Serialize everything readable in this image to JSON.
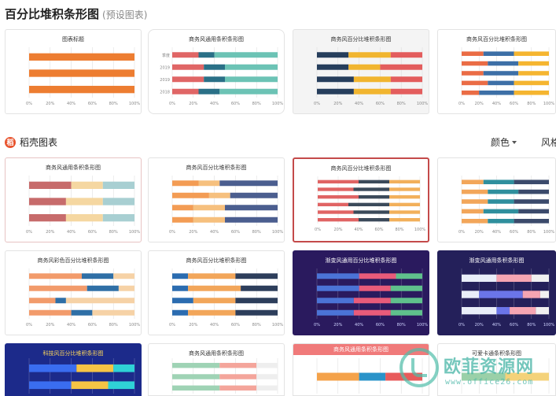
{
  "header": {
    "title": "百分比堆积条形图",
    "subtitle": "(预设图表)"
  },
  "section": {
    "title": "稻壳图表",
    "filter_color": "颜色",
    "filter_style": "风格"
  },
  "watermark": {
    "text": "欧菲资源网",
    "url": "www.office26.com"
  },
  "colors": {
    "accent": "#e8532d",
    "watermark": "#4fb8a6"
  },
  "cards": [
    {
      "id": "preset-1",
      "title": "图表标题",
      "chart_data": {
        "type": "bar",
        "stacked": "percent",
        "categories": [
          "",
          "",
          ""
        ],
        "series": [
          {
            "color": "#ed7d31",
            "values": [
              100,
              100,
              100
            ]
          }
        ],
        "xlim": [
          0,
          100
        ]
      }
    },
    {
      "id": "preset-2",
      "title": "商务风通用条积条形图",
      "chart_data": {
        "type": "bar",
        "stacked": "percent",
        "categories": [
          "季度",
          "2019",
          "2019",
          "2018"
        ],
        "series": [
          {
            "color": "#e06666",
            "values": [
              25,
              30,
              30,
              25
            ]
          },
          {
            "color": "#2a7087",
            "values": [
              15,
              20,
              20,
              20
            ]
          },
          {
            "color": "#6cc3b5",
            "values": [
              60,
              50,
              50,
              55
            ]
          }
        ]
      }
    },
    {
      "id": "preset-3",
      "title": "商务风百分比堆积条形图",
      "chart_data": {
        "type": "bar",
        "stacked": "percent",
        "categories": [
          "",
          "",
          "",
          ""
        ],
        "series": [
          {
            "color": "#263e5c",
            "values": [
              30,
              30,
              35,
              35
            ]
          },
          {
            "color": "#f1b52f",
            "values": [
              40,
              30,
              35,
              35
            ]
          },
          {
            "color": "#e35d5d",
            "values": [
              30,
              40,
              30,
              30
            ]
          }
        ]
      }
    },
    {
      "id": "preset-4",
      "title": "商务风百分比堆积条形图",
      "chart_data": {
        "type": "bar",
        "stacked": "percent",
        "categories": [
          "",
          "",
          "",
          "",
          ""
        ],
        "series": [
          {
            "color": "#ea6c45",
            "values": [
              25,
              30,
              25,
              30,
              20
            ]
          },
          {
            "color": "#3d6fa6",
            "values": [
              35,
              35,
              40,
              30,
              40
            ]
          },
          {
            "color": "#f5b530",
            "values": [
              40,
              35,
              35,
              40,
              40
            ]
          }
        ]
      }
    },
    {
      "id": "doc-1",
      "title": "商务风通用条积条形图",
      "chart_data": {
        "type": "bar",
        "stacked": "percent",
        "categories": [
          "",
          "",
          ""
        ],
        "series": [
          {
            "color": "#c76b6b",
            "values": [
              40,
              35,
              35
            ]
          },
          {
            "color": "#f5d7a1",
            "values": [
              30,
              35,
              35
            ]
          },
          {
            "color": "#a8cfd2",
            "values": [
              30,
              30,
              30
            ]
          }
        ]
      }
    },
    {
      "id": "doc-2",
      "title": "商务风百分比堆积条形图",
      "chart_data": {
        "type": "bar",
        "stacked": "percent",
        "categories": [
          "",
          "",
          "",
          ""
        ],
        "series": [
          {
            "color": "#f39c54",
            "values": [
              25,
              35,
              20,
              20
            ]
          },
          {
            "color": "#f6c07e",
            "values": [
              20,
              20,
              30,
              30
            ]
          },
          {
            "color": "#4b5e8f",
            "values": [
              55,
              45,
              50,
              50
            ]
          }
        ]
      }
    },
    {
      "id": "doc-3",
      "title": "商务风百分比堆积条形图",
      "chart_data": {
        "type": "bar",
        "stacked": "percent",
        "categories": [
          "",
          "",
          "",
          "",
          "",
          ""
        ],
        "series": [
          {
            "color": "#e06464",
            "values": [
              40,
              35,
              40,
              30,
              35,
              40
            ]
          },
          {
            "color": "#3b4a5a",
            "values": [
              30,
              35,
              30,
              40,
              35,
              30
            ]
          },
          {
            "color": "#f2b05b",
            "values": [
              30,
              30,
              30,
              30,
              30,
              30
            ]
          }
        ]
      }
    },
    {
      "id": "doc-4",
      "title": "",
      "chart_data": {
        "type": "bar",
        "stacked": "percent",
        "categories": [
          "",
          "",
          "",
          "",
          ""
        ],
        "series": [
          {
            "color": "#f2a65a",
            "values": [
              25,
              30,
              30,
              25,
              30
            ]
          },
          {
            "color": "#2f8f9d",
            "values": [
              35,
              35,
              30,
              40,
              30
            ]
          },
          {
            "color": "#3b4a6b",
            "values": [
              40,
              35,
              40,
              35,
              40
            ]
          }
        ]
      }
    },
    {
      "id": "doc-5",
      "title": "商务风彩色百分比堆积条形图",
      "chart_data": {
        "type": "bar",
        "stacked": "percent",
        "categories": [
          "",
          "",
          "",
          ""
        ],
        "series": [
          {
            "color": "#f29b6b",
            "values": [
              50,
              55,
              25,
              40
            ]
          },
          {
            "color": "#2f6fa6",
            "values": [
              30,
              30,
              10,
              20
            ]
          },
          {
            "color": "#f6d2a6",
            "values": [
              20,
              15,
              65,
              40
            ]
          }
        ]
      }
    },
    {
      "id": "doc-6",
      "title": "商务风百分比堆积条形图",
      "chart_data": {
        "type": "bar",
        "stacked": "percent",
        "categories": [
          "",
          "",
          "",
          ""
        ],
        "series": [
          {
            "color": "#2b6cb0",
            "values": [
              15,
              15,
              20,
              15
            ]
          },
          {
            "color": "#f2a65a",
            "values": [
              45,
              50,
              40,
              45
            ]
          },
          {
            "color": "#2d3e5b",
            "values": [
              40,
              35,
              40,
              40
            ]
          }
        ]
      }
    },
    {
      "id": "doc-7",
      "title": "渐变风通用百分比堆积条形图",
      "chart_data": {
        "type": "bar",
        "stacked": "percent",
        "categories": [
          "",
          "",
          "",
          ""
        ],
        "series": [
          {
            "color": "#4b73d6",
            "values": [
              40,
              40,
              35,
              35
            ]
          },
          {
            "color": "#e85b7a",
            "values": [
              35,
              30,
              35,
              35
            ]
          },
          {
            "color": "#5fc08c",
            "values": [
              25,
              30,
              30,
              30
            ]
          }
        ]
      }
    },
    {
      "id": "doc-8",
      "title": "渐变风通用条积条形图",
      "chart_data": {
        "type": "bar",
        "stacked": "percent",
        "categories": [
          "",
          "",
          ""
        ],
        "series": [
          {
            "color": "#e9eef9",
            "values": [
              40,
              20,
              40
            ]
          },
          {
            "color": "#6b75e8",
            "values": [
              0,
              50,
              15
            ]
          },
          {
            "color": "#f5a5b2",
            "values": [
              40,
              20,
              30
            ]
          },
          {
            "color": "#f0f0f0",
            "values": [
              20,
              10,
              15
            ]
          }
        ]
      }
    },
    {
      "id": "doc-9",
      "title": "科技风百分比堆积条形图",
      "chart_data": {
        "type": "bar",
        "stacked": "percent",
        "categories": [
          "",
          ""
        ],
        "series": [
          {
            "color": "#3a6df0",
            "values": [
              45,
              40
            ]
          },
          {
            "color": "#f6c445",
            "values": [
              35,
              35
            ]
          },
          {
            "color": "#2fd2d6",
            "values": [
              20,
              25
            ]
          }
        ]
      }
    },
    {
      "id": "doc-10",
      "title": "商务风通用条积条形图",
      "chart_data": {
        "type": "bar",
        "stacked": "percent",
        "categories": [
          "",
          "",
          ""
        ],
        "series": [
          {
            "color": "#9fd3b5",
            "values": [
              45,
              45,
              45
            ]
          },
          {
            "color": "#f4a59b",
            "values": [
              35,
              35,
              35
            ]
          },
          {
            "color": "#eeeeee",
            "values": [
              20,
              20,
              20
            ]
          }
        ]
      }
    },
    {
      "id": "doc-11",
      "title": "商务风通用条积条形图",
      "chart_data": {
        "type": "bar",
        "stacked": "percent",
        "categories": [
          ""
        ],
        "series": [
          {
            "color": "#f4a24a",
            "values": [
              40
            ]
          },
          {
            "color": "#2a93c9",
            "values": [
              25
            ]
          },
          {
            "color": "#e85b5b",
            "values": [
              35
            ]
          }
        ]
      }
    },
    {
      "id": "doc-12",
      "title": "可爱卡通条积条形图",
      "chart_data": {
        "type": "bar",
        "stacked": "percent",
        "categories": [
          ""
        ],
        "series": [
          {
            "color": "#9ad0a8",
            "values": [
              50
            ]
          },
          {
            "color": "#f4d27a",
            "values": [
              50
            ]
          }
        ]
      }
    }
  ]
}
